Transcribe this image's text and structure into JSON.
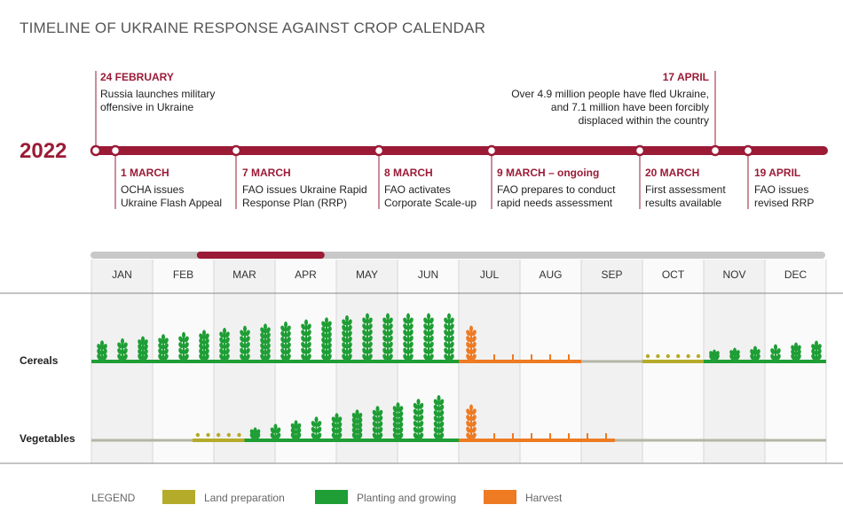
{
  "title": "TIMELINE OF UKRAINE RESPONSE AGAINST CROP CALENDAR",
  "year": "2022",
  "events_top": [
    {
      "date": "24 FEBRUARY",
      "text": "Russia launches military\noffensive in Ukraine"
    },
    {
      "date": "17 APRIL",
      "text": "Over 4.9 million people have fled Ukraine,\nand 7.1 million have been forcibly\ndisplaced within the country"
    }
  ],
  "events_bottom": [
    {
      "date": "1 MARCH",
      "text": "OCHA issues\nUkraine Flash Appeal"
    },
    {
      "date": "7 MARCH",
      "text": "FAO issues Ukraine Rapid\nResponse Plan (RRP)"
    },
    {
      "date": "8 MARCH",
      "text": "FAO activates\nCorporate Scale-up"
    },
    {
      "date": "9 MARCH – ongoing",
      "text": "FAO prepares to conduct\nrapid needs assessment"
    },
    {
      "date": "20 MARCH",
      "text": "First assessment\nresults available"
    },
    {
      "date": "19 APRIL",
      "text": "FAO issues\nrevised RRP"
    }
  ],
  "months": [
    "JAN",
    "FEB",
    "MAR",
    "APR",
    "MAY",
    "JUN",
    "JUL",
    "AUG",
    "SEP",
    "OCT",
    "NOV",
    "DEC"
  ],
  "crops": [
    {
      "name": "Cereals",
      "segments": [
        {
          "phase": "planting",
          "from": 0,
          "to": 6
        },
        {
          "phase": "harvest",
          "from": 6,
          "to": 8
        },
        {
          "phase": "none",
          "from": 8,
          "to": 9
        },
        {
          "phase": "land",
          "from": 9,
          "to": 10
        },
        {
          "phase": "planting",
          "from": 10,
          "to": 12
        }
      ]
    },
    {
      "name": "Vegetables",
      "segments": [
        {
          "phase": "none",
          "from": 0,
          "to": 1.65
        },
        {
          "phase": "land",
          "from": 1.65,
          "to": 2.5
        },
        {
          "phase": "planting",
          "from": 2.5,
          "to": 6
        },
        {
          "phase": "harvest",
          "from": 6,
          "to": 8.55
        },
        {
          "phase": "none",
          "from": 8.55,
          "to": 12
        }
      ]
    }
  ],
  "legend": {
    "title": "LEGEND",
    "items": [
      {
        "label": "Land preparation",
        "color": "#b5ab2a"
      },
      {
        "label": "Planting and growing",
        "color": "#1e9e35"
      },
      {
        "label": "Harvest",
        "color": "#ee7a22"
      }
    ]
  },
  "colors": {
    "accent": "#9b1b36",
    "land": "#b5ab2a",
    "planting": "#1e9e35",
    "harvest": "#ee7a22",
    "none": "#b5b5a5",
    "scale_bar": "#c8c8c8"
  }
}
